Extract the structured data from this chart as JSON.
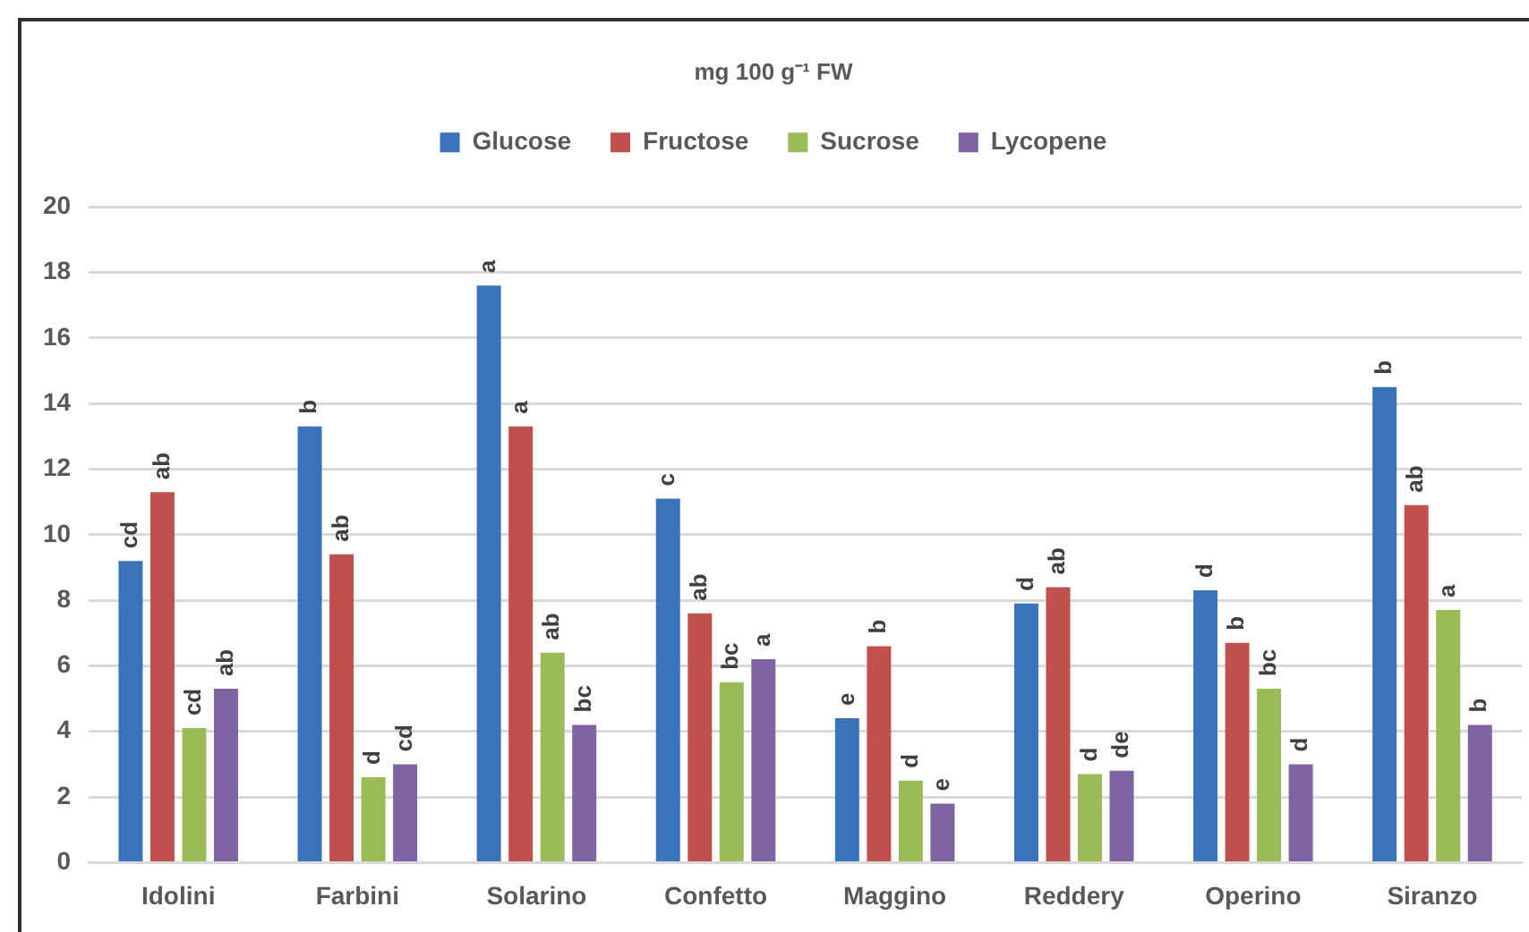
{
  "chart_data": {
    "type": "bar",
    "title": "mg 100 g⁻¹ FW",
    "categories": [
      "Idolini",
      "Farbini",
      "Solarino",
      "Confetto",
      "Maggino",
      "Reddery",
      "Operino",
      "Siranzo"
    ],
    "series": [
      {
        "name": "Glucose",
        "color": "#3a73b9",
        "values": [
          9.2,
          13.3,
          17.6,
          11.1,
          4.4,
          7.9,
          8.3,
          14.5
        ],
        "value_labels": [
          "cd",
          "b",
          "a",
          "c",
          "e",
          "d",
          "d",
          "b"
        ]
      },
      {
        "name": "Fructose",
        "color": "#c0504d",
        "values": [
          11.3,
          9.4,
          13.3,
          7.6,
          6.6,
          8.4,
          6.7,
          10.9
        ],
        "value_labels": [
          "ab",
          "ab",
          "a",
          "ab",
          "b",
          "ab",
          "b",
          "ab"
        ]
      },
      {
        "name": "Sucrose",
        "color": "#9bbb59",
        "values": [
          4.1,
          2.6,
          6.4,
          5.5,
          2.5,
          2.7,
          5.3,
          7.7
        ],
        "value_labels": [
          "cd",
          "d",
          "ab",
          "bc",
          "d",
          "d",
          "bc",
          "a"
        ]
      },
      {
        "name": "Lycopene",
        "color": "#8064a2",
        "values": [
          5.3,
          3.0,
          4.2,
          6.2,
          1.8,
          2.8,
          3.0,
          4.2
        ],
        "value_labels": [
          "ab",
          "cd",
          "bc",
          "a",
          "e",
          "de",
          "d",
          "b"
        ]
      }
    ],
    "ylim": [
      0,
      20
    ],
    "yticks": [
      0,
      2,
      4,
      6,
      8,
      10,
      12,
      14,
      16,
      18,
      20
    ],
    "grid": "y",
    "legend": "top"
  }
}
